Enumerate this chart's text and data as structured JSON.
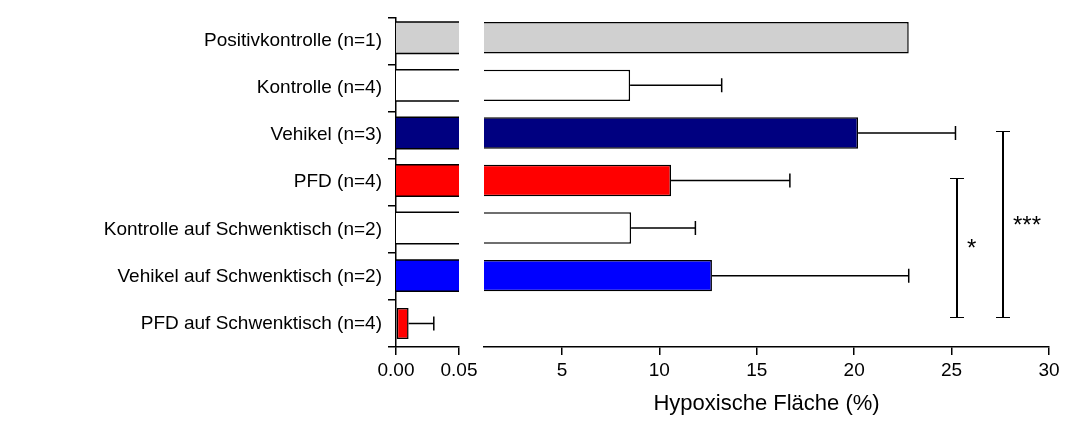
{
  "chart_data": [
    {
      "type": "bar",
      "orientation": "horizontal",
      "categories": [
        "Positivkontrolle (n=1)",
        "Kontrolle (n=4)",
        "Vehikel (n=3)",
        "PFD (n=4)",
        "Kontrolle auf Schwenktisch (n=2)",
        "Vehikel auf Schwenktisch (n=2)",
        "PFD auf Schwenktisch (n=4)"
      ],
      "values": [
        null,
        null,
        null,
        null,
        null,
        null,
        0.01
      ],
      "errors": [
        null,
        null,
        null,
        null,
        null,
        null,
        0.02
      ],
      "colors": [
        "#d0d0d0",
        "#ffffff",
        "#000080",
        "#ff0000",
        "#ffffff",
        "#0000ff",
        "#ff0000"
      ],
      "xlim": [
        0,
        0.05
      ],
      "xticks": [
        {
          "value": 0,
          "label": "0.00"
        },
        {
          "value": 0.05,
          "label": "0.05"
        }
      ]
    },
    {
      "type": "bar",
      "orientation": "horizontal",
      "categories": [
        null,
        null,
        null,
        null,
        null,
        null,
        null
      ],
      "values": [
        22.8,
        8.5,
        20.2,
        10.6,
        8.55,
        12.7,
        null
      ],
      "errors": [
        null,
        4.7,
        5.0,
        6.1,
        3.3,
        10.1,
        null
      ],
      "colors": [
        "#d0d0d0",
        "#ffffff",
        "#000080",
        "#ff0000",
        "#ffffff",
        "#0000ff",
        "#ff0000"
      ],
      "xlim": [
        1,
        30
      ],
      "xticks": [
        5,
        10,
        15,
        20,
        25,
        30
      ],
      "tick_labels": "x",
      "xlabel": "Hypoxische Fläche (%)",
      "annotations": [
        "*",
        "***"
      ]
    }
  ]
}
